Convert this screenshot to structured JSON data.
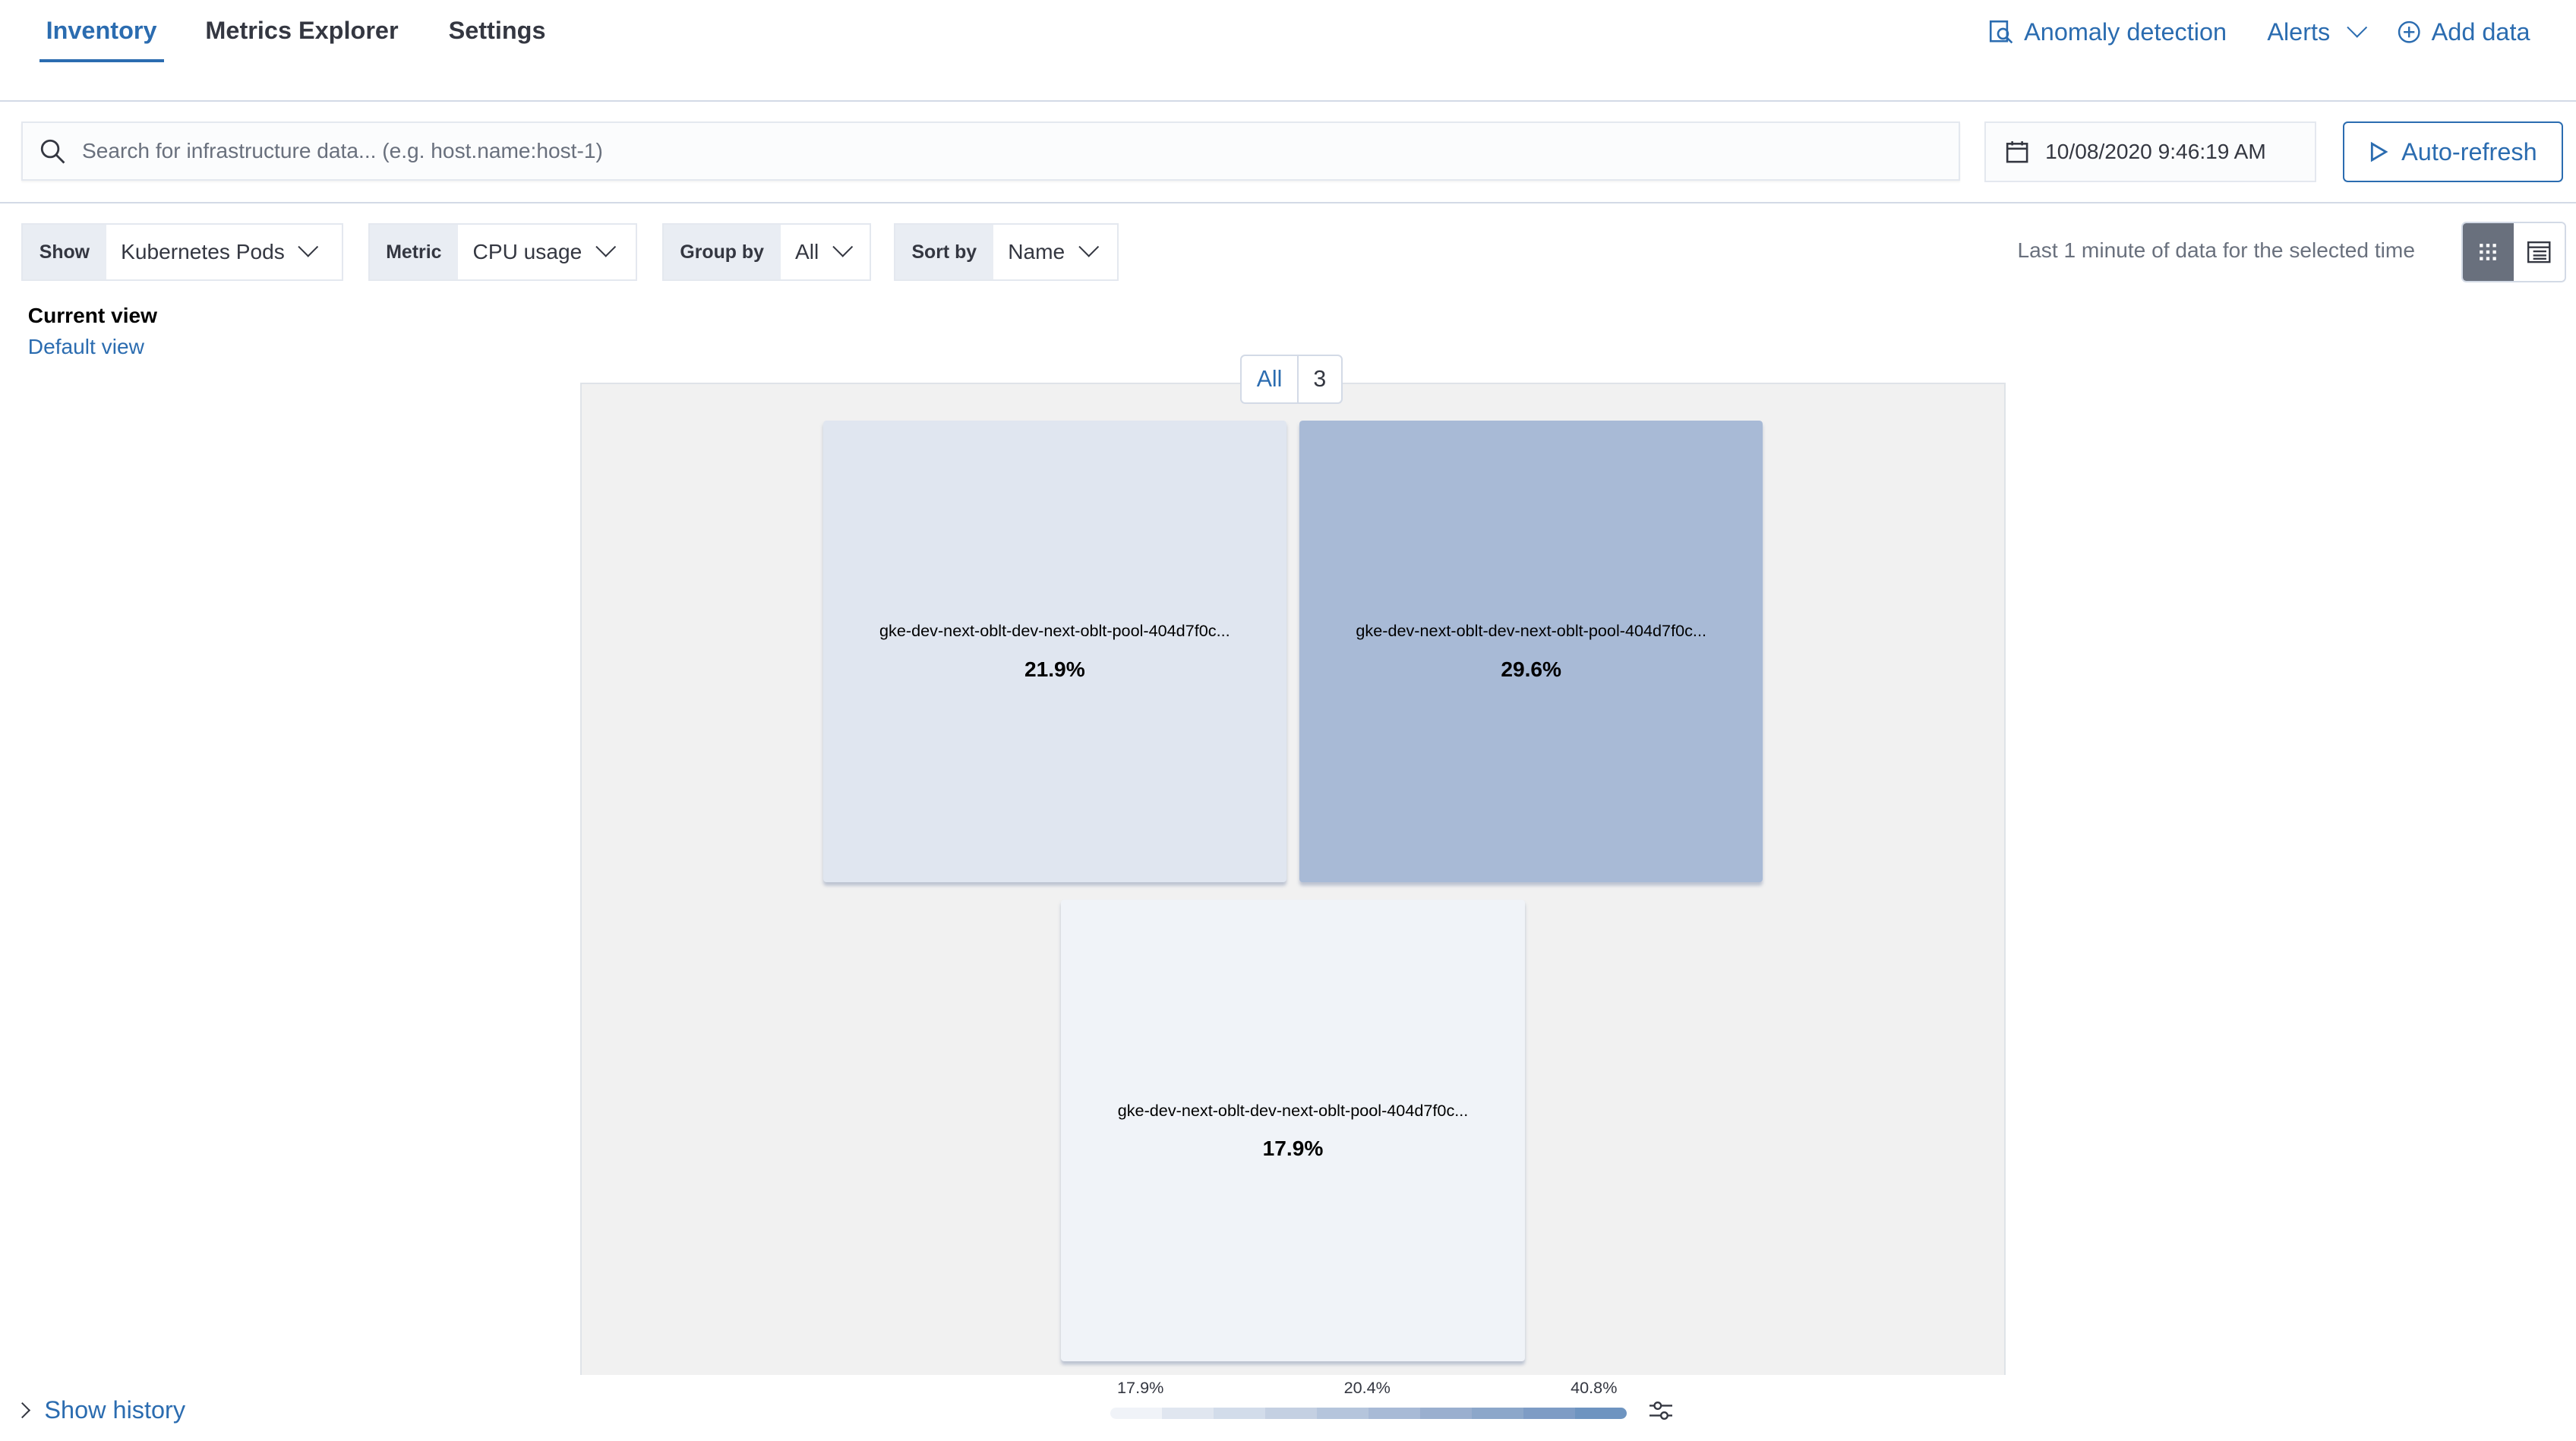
{
  "nav": {
    "tabs": [
      {
        "label": "Inventory",
        "active": true
      },
      {
        "label": "Metrics Explorer"
      },
      {
        "label": "Settings"
      }
    ],
    "anomaly": "Anomaly detection",
    "alerts": "Alerts",
    "add_data": "Add data"
  },
  "search": {
    "placeholder": "Search for infrastructure data... (e.g. host.name:host-1)",
    "value": ""
  },
  "date": "10/08/2020 9:46:19 AM",
  "auto_refresh": "Auto-refresh",
  "controls": [
    {
      "label": "Show",
      "value": "Kubernetes Pods"
    },
    {
      "label": "Metric",
      "value": "CPU usage"
    },
    {
      "label": "Group by",
      "value": "All"
    },
    {
      "label": "Sort by",
      "value": "Name"
    }
  ],
  "note": "Last 1 minute of data for the selected time",
  "view": {
    "title": "Current view",
    "name": "Default view"
  },
  "group": {
    "label": "All",
    "count": "3"
  },
  "tiles": [
    {
      "name": "gke-dev-next-oblt-dev-next-oblt-pool-404d7f0c...",
      "value": "21.9%",
      "color": "#e0e6f0"
    },
    {
      "name": "gke-dev-next-oblt-dev-next-oblt-pool-404d7f0c...",
      "value": "29.6%",
      "color": "#a8bad6"
    },
    {
      "name": "gke-dev-next-oblt-dev-next-oblt-pool-404d7f0c...",
      "value": "17.9%",
      "color": "#f0f3f8"
    }
  ],
  "legend": {
    "labels": [
      "17.9%",
      "20.4%",
      "40.8%"
    ],
    "colors": [
      "#f0f3f8",
      "#e0e6f0",
      "#d2dcea",
      "#c4d0e2",
      "#b5c5dc",
      "#a8bad6",
      "#9aafcf",
      "#8ca7ca",
      "#7e9cc5",
      "#6e94c0"
    ]
  },
  "history": "Show history",
  "accent": "#2b6cb0"
}
